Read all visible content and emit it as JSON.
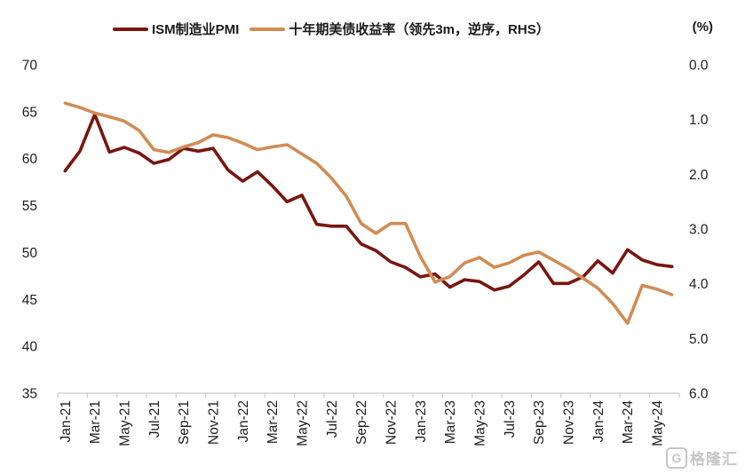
{
  "legend": {
    "items": [
      {
        "label": "ISM制造业PMI",
        "color": "#7B150F"
      },
      {
        "label": "十年期美债收益率（领先3m，逆序，RHS）",
        "color": "#D18C53"
      }
    ]
  },
  "right_axis_unit": "(%)",
  "watermark": {
    "text": "格隆汇",
    "icon": "G"
  },
  "chart_data": {
    "type": "line",
    "x": [
      "Jan-21",
      "Feb-21",
      "Mar-21",
      "Apr-21",
      "May-21",
      "Jun-21",
      "Jul-21",
      "Aug-21",
      "Sep-21",
      "Oct-21",
      "Nov-21",
      "Dec-21",
      "Jan-22",
      "Feb-22",
      "Mar-22",
      "Apr-22",
      "May-22",
      "Jun-22",
      "Jul-22",
      "Aug-22",
      "Sep-22",
      "Oct-22",
      "Nov-22",
      "Dec-22",
      "Jan-23",
      "Feb-23",
      "Mar-23",
      "Apr-23",
      "May-23",
      "Jun-23",
      "Jul-23",
      "Aug-23",
      "Sep-23",
      "Oct-23",
      "Nov-23",
      "Dec-23",
      "Jan-24",
      "Feb-24",
      "Mar-24",
      "Apr-24",
      "May-24",
      "Jun-24"
    ],
    "x_tick_labels": [
      "Jan-21",
      "Mar-21",
      "May-21",
      "Jul-21",
      "Sep-21",
      "Nov-21",
      "Jan-22",
      "Mar-22",
      "May-22",
      "Jul-22",
      "Sep-22",
      "Nov-22",
      "Jan-23",
      "Mar-23",
      "May-23",
      "Jul-23",
      "Sep-23",
      "Nov-23",
      "Jan-24",
      "Mar-24",
      "May-24"
    ],
    "series": [
      {
        "name": "ISM制造业PMI",
        "axis": "left",
        "color": "#7B150F",
        "values": [
          58.7,
          60.8,
          64.7,
          60.7,
          61.2,
          60.6,
          59.5,
          59.9,
          61.1,
          60.8,
          61.1,
          58.8,
          57.6,
          58.6,
          57.1,
          55.4,
          56.1,
          53.0,
          52.8,
          52.8,
          50.9,
          50.2,
          49.0,
          48.4,
          47.4,
          47.7,
          46.3,
          47.1,
          46.9,
          46.0,
          46.4,
          47.6,
          49.0,
          46.7,
          46.7,
          47.4,
          49.1,
          47.8,
          50.3,
          49.2,
          48.7,
          48.5
        ]
      },
      {
        "name": "十年期美债收益率（领先3m，逆序，RHS）",
        "axis": "right",
        "color": "#D18C53",
        "values": [
          0.7,
          0.78,
          0.88,
          0.95,
          1.03,
          1.2,
          1.55,
          1.6,
          1.5,
          1.42,
          1.28,
          1.33,
          1.43,
          1.55,
          1.5,
          1.46,
          1.63,
          1.8,
          2.07,
          2.4,
          2.9,
          3.08,
          2.9,
          2.9,
          3.5,
          3.97,
          3.87,
          3.62,
          3.52,
          3.7,
          3.62,
          3.48,
          3.42,
          3.57,
          3.72,
          3.9,
          4.08,
          4.36,
          4.72,
          4.03,
          4.1,
          4.2
        ]
      }
    ],
    "left_axis": {
      "min": 35,
      "max": 70,
      "ticks": [
        "70",
        "65",
        "60",
        "55",
        "50",
        "45",
        "40",
        "35"
      ],
      "inverted": false
    },
    "right_axis": {
      "min": 0.0,
      "max": 6.0,
      "ticks": [
        "0.0",
        "1.0",
        "2.0",
        "3.0",
        "4.0",
        "5.0",
        "6.0"
      ],
      "inverted": true,
      "unit": "(%)"
    },
    "grid": "off",
    "legend_position": "top",
    "title": "",
    "xlabel": "",
    "ylabel": ""
  }
}
